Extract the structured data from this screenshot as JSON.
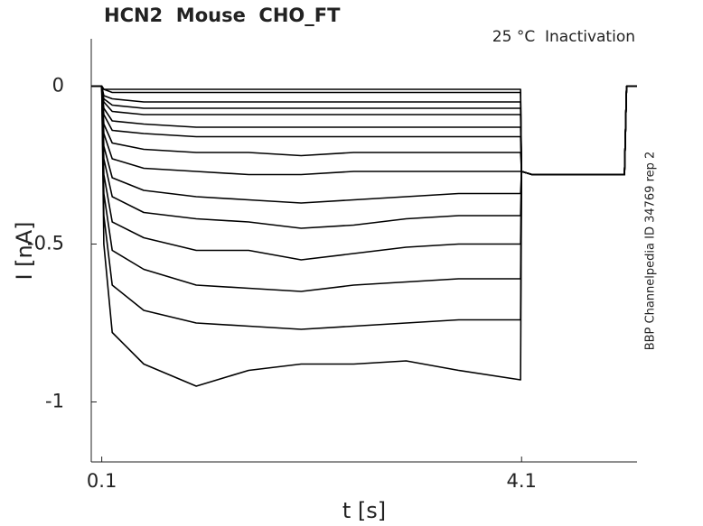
{
  "chart_data": {
    "type": "line",
    "title": "HCN2  Mouse  CHO_FT",
    "annotation": "25 °C  Inactivation",
    "side_label": "BBP Channelpedia ID 34769 rep 2",
    "xlabel": "t [s]",
    "ylabel": "I [nA]",
    "xlim": [
      0,
      5.2
    ],
    "ylim": [
      -1.19,
      0.15
    ],
    "xticks": [
      0.1,
      4.1
    ],
    "yticks": [
      -1,
      -0.5,
      0
    ],
    "x": [
      0,
      0.09,
      0.1,
      0.12,
      0.2,
      0.5,
      1,
      1.5,
      2,
      2.5,
      3,
      3.5,
      4.09,
      4.1,
      4.2,
      5.08,
      5.1,
      5.2
    ],
    "series": [
      {
        "color": "#000000",
        "values": [
          0,
          0,
          0,
          -0.01,
          -0.01,
          -0.01,
          -0.01,
          -0.01,
          -0.01,
          -0.01,
          -0.01,
          -0.01,
          -0.01,
          -0.27,
          -0.28,
          -0.28,
          0,
          0
        ]
      },
      {
        "color": "#000000",
        "values": [
          0,
          0,
          0,
          -0.01,
          -0.02,
          -0.02,
          -0.02,
          -0.02,
          -0.02,
          -0.02,
          -0.02,
          -0.02,
          -0.02,
          -0.27,
          -0.28,
          -0.28,
          0,
          0
        ]
      },
      {
        "color": "#000000",
        "values": [
          0,
          0,
          0,
          -0.03,
          -0.04,
          -0.05,
          -0.05,
          -0.05,
          -0.05,
          -0.05,
          -0.05,
          -0.05,
          -0.05,
          -0.27,
          -0.28,
          -0.28,
          0,
          0
        ]
      },
      {
        "color": "#000000",
        "values": [
          0,
          0,
          0,
          -0.04,
          -0.06,
          -0.07,
          -0.07,
          -0.07,
          -0.07,
          -0.07,
          -0.07,
          -0.07,
          -0.07,
          -0.27,
          -0.28,
          -0.28,
          0,
          0
        ]
      },
      {
        "color": "#000000",
        "values": [
          0,
          0,
          0,
          -0.05,
          -0.08,
          -0.09,
          -0.09,
          -0.09,
          -0.09,
          -0.09,
          -0.09,
          -0.09,
          -0.09,
          -0.27,
          -0.28,
          -0.28,
          0,
          0
        ]
      },
      {
        "color": "#000000",
        "values": [
          0,
          0,
          0,
          -0.07,
          -0.11,
          -0.12,
          -0.13,
          -0.13,
          -0.13,
          -0.13,
          -0.13,
          -0.13,
          -0.13,
          -0.27,
          -0.28,
          -0.28,
          0,
          0
        ]
      },
      {
        "color": "#000000",
        "values": [
          0,
          0,
          0,
          -0.09,
          -0.14,
          -0.15,
          -0.16,
          -0.16,
          -0.16,
          -0.16,
          -0.16,
          -0.16,
          -0.16,
          -0.27,
          -0.28,
          -0.28,
          0,
          0
        ]
      },
      {
        "color": "#000000",
        "values": [
          0,
          0,
          0,
          -0.12,
          -0.18,
          -0.2,
          -0.21,
          -0.21,
          -0.22,
          -0.21,
          -0.21,
          -0.21,
          -0.21,
          -0.27,
          -0.28,
          -0.28,
          0,
          0
        ]
      },
      {
        "color": "#000000",
        "values": [
          0,
          0,
          0,
          -0.15,
          -0.23,
          -0.26,
          -0.27,
          -0.28,
          -0.28,
          -0.27,
          -0.27,
          -0.27,
          -0.27,
          -0.27,
          -0.28,
          -0.28,
          0,
          0
        ]
      },
      {
        "color": "#000000",
        "values": [
          0,
          0,
          0,
          -0.19,
          -0.29,
          -0.33,
          -0.35,
          -0.36,
          -0.37,
          -0.36,
          -0.35,
          -0.34,
          -0.34,
          -0.27,
          -0.28,
          -0.28,
          0,
          0
        ]
      },
      {
        "color": "#000000",
        "values": [
          0,
          0,
          0,
          -0.23,
          -0.35,
          -0.4,
          -0.42,
          -0.43,
          -0.45,
          -0.44,
          -0.42,
          -0.41,
          -0.41,
          -0.27,
          -0.28,
          -0.28,
          0,
          0
        ]
      },
      {
        "color": "#000000",
        "values": [
          0,
          0,
          0,
          -0.28,
          -0.43,
          -0.48,
          -0.52,
          -0.52,
          -0.55,
          -0.53,
          -0.51,
          -0.5,
          -0.5,
          -0.27,
          -0.28,
          -0.28,
          0,
          0
        ]
      },
      {
        "color": "#000000",
        "values": [
          0,
          0,
          0,
          -0.34,
          -0.52,
          -0.58,
          -0.63,
          -0.64,
          -0.65,
          -0.63,
          -0.62,
          -0.61,
          -0.61,
          -0.27,
          -0.28,
          -0.28,
          0,
          0
        ]
      },
      {
        "color": "#000000",
        "values": [
          0,
          0,
          0,
          -0.41,
          -0.63,
          -0.71,
          -0.75,
          -0.76,
          -0.77,
          -0.76,
          -0.75,
          -0.74,
          -0.74,
          -0.27,
          -0.28,
          -0.28,
          0,
          0
        ]
      },
      {
        "color": "#000000",
        "values": [
          0,
          0,
          0,
          -0.5,
          -0.78,
          -0.88,
          -0.95,
          -0.9,
          -0.88,
          -0.88,
          -0.87,
          -0.9,
          -0.93,
          -0.27,
          -0.28,
          -0.28,
          0,
          0
        ]
      }
    ]
  }
}
